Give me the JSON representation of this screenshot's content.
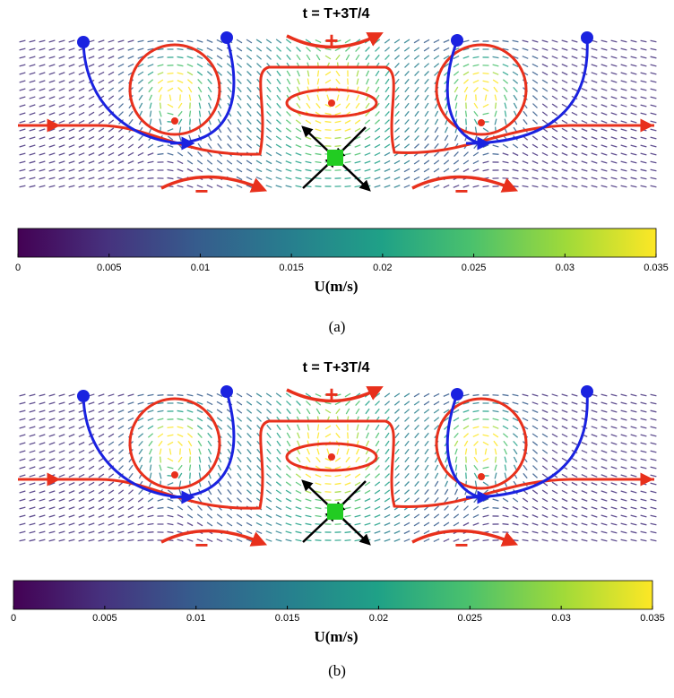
{
  "panels": [
    {
      "title": "t = T+3T/4",
      "annotations": [
        "+",
        "−",
        "−"
      ],
      "colorbar": {
        "lim": [
          0,
          0.035
        ],
        "ticks": [
          0,
          0.005,
          0.01,
          0.015,
          0.02,
          0.025,
          0.03,
          0.035
        ],
        "label": "U(m/s)"
      },
      "caption": "(a)"
    },
    {
      "title": "t = T+3T/4",
      "annotations": [
        "+",
        "−",
        "−"
      ],
      "colorbar": {
        "lim": [
          0,
          0.035
        ],
        "ticks": [
          0,
          0.005,
          0.01,
          0.015,
          0.02,
          0.025,
          0.03,
          0.035
        ],
        "label": "U(m/s)"
      },
      "caption": "(b)"
    }
  ]
}
